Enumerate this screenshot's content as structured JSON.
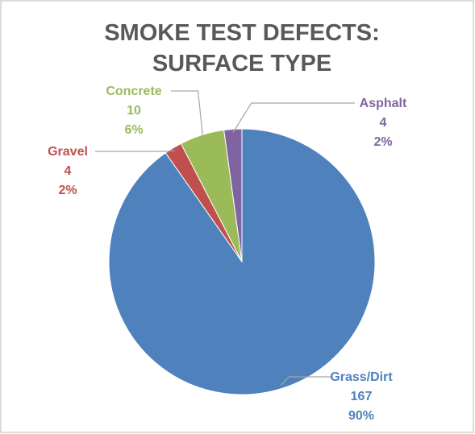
{
  "chart_data": {
    "type": "pie",
    "title": [
      "SMOKE TEST DEFECTS:",
      "SURFACE TYPE"
    ],
    "categories": [
      "Grass/Dirt",
      "Gravel",
      "Concrete",
      "Asphalt"
    ],
    "values": [
      167,
      4,
      10,
      4
    ],
    "percent_labels": [
      "90%",
      "2%",
      "6%",
      "2%"
    ],
    "colors": [
      "#4f81bd",
      "#c0504d",
      "#9bbb59",
      "#8064a2"
    ]
  }
}
